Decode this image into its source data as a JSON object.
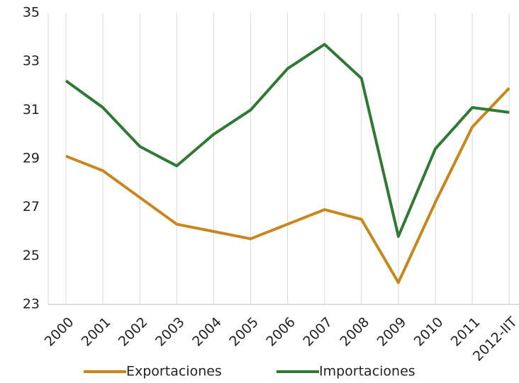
{
  "chart_data": {
    "type": "line",
    "categories": [
      "2000",
      "2001",
      "2002",
      "2003",
      "2004",
      "2005",
      "2006",
      "2007",
      "2008",
      "2009",
      "2010",
      "2011",
      "2012-IIT"
    ],
    "series": [
      {
        "name": "Exportaciones",
        "color": "#c8861d",
        "values": [
          29.1,
          28.5,
          27.4,
          26.3,
          26.0,
          25.7,
          26.3,
          26.9,
          26.5,
          23.9,
          27.2,
          30.3,
          31.9
        ]
      },
      {
        "name": "Importaciones",
        "color": "#2e7a32",
        "values": [
          32.2,
          31.1,
          29.5,
          28.7,
          30.0,
          31.0,
          32.7,
          33.7,
          32.3,
          25.8,
          29.4,
          31.1,
          30.9
        ]
      }
    ],
    "ylim": [
      23,
      35
    ],
    "yticks": [
      23,
      25,
      27,
      29,
      31,
      33,
      35
    ],
    "grid": true,
    "legend": "bottom"
  }
}
